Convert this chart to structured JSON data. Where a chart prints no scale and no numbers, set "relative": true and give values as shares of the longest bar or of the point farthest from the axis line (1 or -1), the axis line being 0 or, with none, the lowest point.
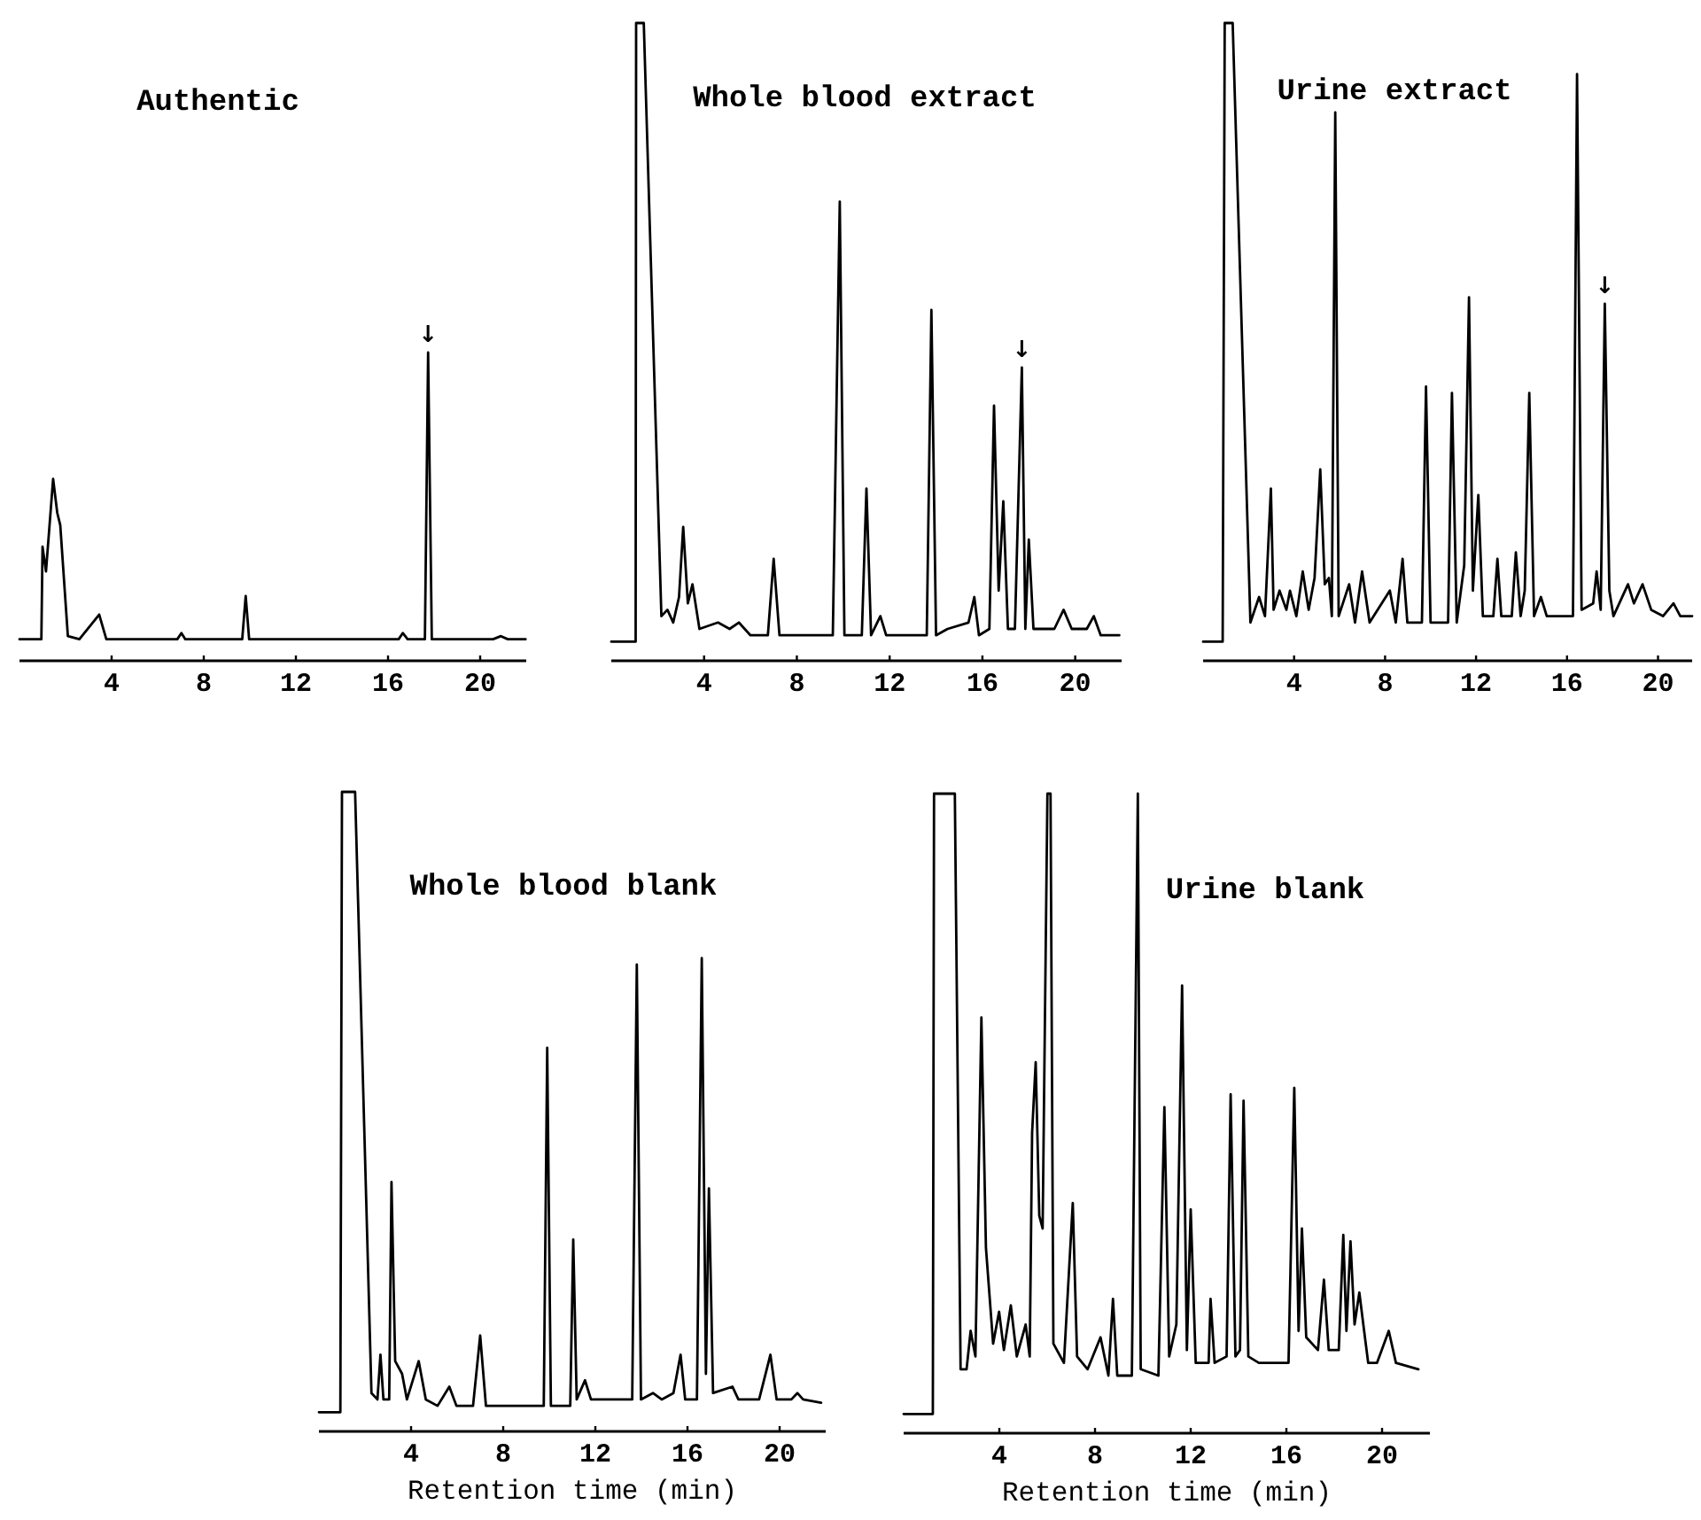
{
  "chart_data": [
    {
      "type": "line",
      "title": "Authentic",
      "relative": true,
      "xlim": [
        0,
        22
      ],
      "xticks": [
        4,
        8,
        12,
        16,
        20
      ],
      "annotations": [
        {
          "text": "↓",
          "x": 17.74,
          "y": 1.0
        }
      ],
      "series": [
        {
          "color": "#000000",
          "x": [
            0,
            0.95,
            1.0,
            1.15,
            1.46,
            1.64,
            1.77,
            2.1,
            2.6,
            3.46,
            3.77,
            6.85,
            7.03,
            7.2,
            9.67,
            9.82,
            9.97,
            11.0,
            16.46,
            16.64,
            16.85,
            17.6,
            17.74,
            17.9,
            20.56,
            20.9,
            21.2,
            21.97
          ],
          "values": [
            0.07,
            0.07,
            0.37,
            0.29,
            0.59,
            0.48,
            0.44,
            0.08,
            0.07,
            0.15,
            0.07,
            0.07,
            0.09,
            0.07,
            0.07,
            0.21,
            0.07,
            0.07,
            0.07,
            0.09,
            0.07,
            0.07,
            1.0,
            0.07,
            0.07,
            0.08,
            0.07,
            0.07
          ]
        }
      ]
    },
    {
      "type": "line",
      "title": "Whole blood extract",
      "relative": true,
      "xlim": [
        0,
        22
      ],
      "xticks": [
        4,
        8,
        12,
        16,
        20
      ],
      "annotations": [
        {
          "text": "↓",
          "x": 17.7,
          "y": 0.46
        }
      ],
      "series": [
        {
          "color": "#000000",
          "x": [
            0,
            1.05,
            1.07,
            1.4,
            2.16,
            2.42,
            2.67,
            2.92,
            3.1,
            3.3,
            3.5,
            3.8,
            4.6,
            5.1,
            5.5,
            6.0,
            6.75,
            7.0,
            7.25,
            9.55,
            9.85,
            10.05,
            10.8,
            11.0,
            11.2,
            11.6,
            11.85,
            13.6,
            13.8,
            14.0,
            14.5,
            15.4,
            15.65,
            15.85,
            16.3,
            16.5,
            16.7,
            16.9,
            17.1,
            17.4,
            17.7,
            17.85,
            18.0,
            18.2,
            19.1,
            19.5,
            19.85,
            20.5,
            20.8,
            21.1,
            21.9
          ],
          "values": [
            0.03,
            0.03,
            1.0,
            1.0,
            0.07,
            0.08,
            0.06,
            0.1,
            0.21,
            0.09,
            0.12,
            0.05,
            0.06,
            0.05,
            0.06,
            0.04,
            0.04,
            0.16,
            0.04,
            0.04,
            0.72,
            0.04,
            0.04,
            0.27,
            0.04,
            0.07,
            0.04,
            0.04,
            0.55,
            0.04,
            0.05,
            0.06,
            0.1,
            0.04,
            0.05,
            0.4,
            0.11,
            0.25,
            0.05,
            0.05,
            0.46,
            0.05,
            0.19,
            0.05,
            0.05,
            0.08,
            0.05,
            0.05,
            0.07,
            0.04,
            0.04
          ]
        }
      ]
    },
    {
      "type": "line",
      "title": "Urine extract",
      "relative": true,
      "xlim": [
        0,
        21.5
      ],
      "xticks": [
        4,
        8,
        12,
        16,
        20
      ],
      "annotations": [
        {
          "text": "↓",
          "x": 17.66,
          "y": 0.56
        }
      ],
      "series": [
        {
          "color": "#000000",
          "x": [
            0,
            0.86,
            0.95,
            1.3,
            2.08,
            2.46,
            2.72,
            2.98,
            3.1,
            3.36,
            3.66,
            3.82,
            4.1,
            4.38,
            4.64,
            4.9,
            5.15,
            5.35,
            5.53,
            5.66,
            5.81,
            5.96,
            6.42,
            6.68,
            6.99,
            7.32,
            8.21,
            8.47,
            8.77,
            8.98,
            9.62,
            9.8,
            10.0,
            10.77,
            10.94,
            11.15,
            11.48,
            11.69,
            11.86,
            12.1,
            12.3,
            12.76,
            12.94,
            13.11,
            13.57,
            13.75,
            13.96,
            14.14,
            14.34,
            14.55,
            14.85,
            15.11,
            16.26,
            16.44,
            16.64,
            17.15,
            17.3,
            17.48,
            17.66,
            17.86,
            18.04,
            18.68,
            18.94,
            19.32,
            19.7,
            20.22,
            20.68,
            20.98,
            21.5
          ],
          "values": [
            0.03,
            0.03,
            1.0,
            1.0,
            0.06,
            0.1,
            0.07,
            0.27,
            0.08,
            0.11,
            0.08,
            0.11,
            0.07,
            0.14,
            0.08,
            0.13,
            0.3,
            0.12,
            0.13,
            0.07,
            0.86,
            0.07,
            0.12,
            0.06,
            0.14,
            0.06,
            0.11,
            0.06,
            0.16,
            0.06,
            0.06,
            0.43,
            0.06,
            0.06,
            0.42,
            0.06,
            0.15,
            0.57,
            0.11,
            0.26,
            0.07,
            0.07,
            0.16,
            0.07,
            0.07,
            0.17,
            0.07,
            0.11,
            0.42,
            0.07,
            0.1,
            0.07,
            0.07,
            0.92,
            0.08,
            0.09,
            0.14,
            0.08,
            0.56,
            0.11,
            0.07,
            0.12,
            0.09,
            0.12,
            0.08,
            0.07,
            0.09,
            0.07,
            0.07
          ]
        }
      ]
    },
    {
      "type": "line",
      "title": "Whole blood blank",
      "xlabel": "Retention time (min)",
      "relative": true,
      "xlim": [
        0,
        22
      ],
      "xticks": [
        4,
        8,
        12,
        16,
        20
      ],
      "series": [
        {
          "color": "#000000",
          "x": [
            0,
            0.93,
            1.0,
            1.57,
            2.28,
            2.54,
            2.67,
            2.8,
            3.05,
            3.15,
            3.31,
            3.61,
            3.82,
            4.33,
            4.64,
            5.15,
            5.66,
            5.97,
            6.69,
            7.0,
            7.25,
            9.76,
            9.91,
            10.07,
            10.91,
            11.04,
            11.19,
            11.55,
            11.81,
            13.6,
            13.8,
            13.98,
            14.5,
            14.88,
            15.39,
            15.7,
            15.9,
            16.41,
            16.62,
            16.8,
            16.93,
            17.11,
            17.95,
            18.21,
            19.11,
            19.6,
            19.87,
            20.51,
            20.77,
            21.02,
            21.8
          ],
          "values": [
            0.03,
            0.03,
            1.0,
            1.0,
            0.06,
            0.05,
            0.12,
            0.05,
            0.05,
            0.39,
            0.11,
            0.09,
            0.05,
            0.11,
            0.05,
            0.04,
            0.07,
            0.04,
            0.04,
            0.15,
            0.04,
            0.04,
            0.6,
            0.04,
            0.04,
            0.3,
            0.05,
            0.08,
            0.05,
            0.05,
            0.73,
            0.05,
            0.06,
            0.05,
            0.06,
            0.12,
            0.05,
            0.05,
            0.74,
            0.09,
            0.38,
            0.06,
            0.07,
            0.05,
            0.05,
            0.12,
            0.05,
            0.05,
            0.06,
            0.05,
            0.045
          ]
        }
      ]
    },
    {
      "type": "line",
      "title": "Urine blank",
      "xlabel": "Retention time (min)",
      "relative": true,
      "xlim": [
        0,
        22
      ],
      "xticks": [
        4,
        8,
        12,
        16,
        20
      ],
      "series": [
        {
          "color": "#000000",
          "x": [
            0,
            1.22,
            1.27,
            2.14,
            2.38,
            2.63,
            2.8,
            3.0,
            3.25,
            3.44,
            3.74,
            3.99,
            4.19,
            4.48,
            4.73,
            5.1,
            5.27,
            5.37,
            5.52,
            5.67,
            5.81,
            6.01,
            6.14,
            6.26,
            6.7,
            7.07,
            7.25,
            7.69,
            8.23,
            8.56,
            8.75,
            8.93,
            9.54,
            9.79,
            9.91,
            10.65,
            10.9,
            11.1,
            11.4,
            11.64,
            11.84,
            12.0,
            12.21,
            12.75,
            12.83,
            13.0,
            13.5,
            13.67,
            13.87,
            14.06,
            14.21,
            14.41,
            14.85,
            15.35,
            16.09,
            16.33,
            16.51,
            16.65,
            16.83,
            17.32,
            17.57,
            17.77,
            18.19,
            18.38,
            18.51,
            18.68,
            18.85,
            19.05,
            19.25,
            19.42,
            19.79,
            20.28,
            20.58,
            21.52
          ],
          "values": [
            0.03,
            0.03,
            1.0,
            1.0,
            0.1,
            0.1,
            0.16,
            0.12,
            0.65,
            0.29,
            0.14,
            0.19,
            0.13,
            0.2,
            0.12,
            0.17,
            0.12,
            0.47,
            0.58,
            0.34,
            0.32,
            1.0,
            1.0,
            0.14,
            0.11,
            0.36,
            0.12,
            0.1,
            0.15,
            0.09,
            0.21,
            0.09,
            0.09,
            1.0,
            0.1,
            0.09,
            0.51,
            0.12,
            0.17,
            0.7,
            0.13,
            0.35,
            0.11,
            0.11,
            0.21,
            0.11,
            0.12,
            0.53,
            0.12,
            0.13,
            0.52,
            0.12,
            0.11,
            0.11,
            0.11,
            0.54,
            0.16,
            0.32,
            0.15,
            0.13,
            0.24,
            0.13,
            0.13,
            0.31,
            0.16,
            0.3,
            0.17,
            0.22,
            0.16,
            0.11,
            0.11,
            0.16,
            0.11,
            0.1
          ]
        }
      ]
    }
  ]
}
